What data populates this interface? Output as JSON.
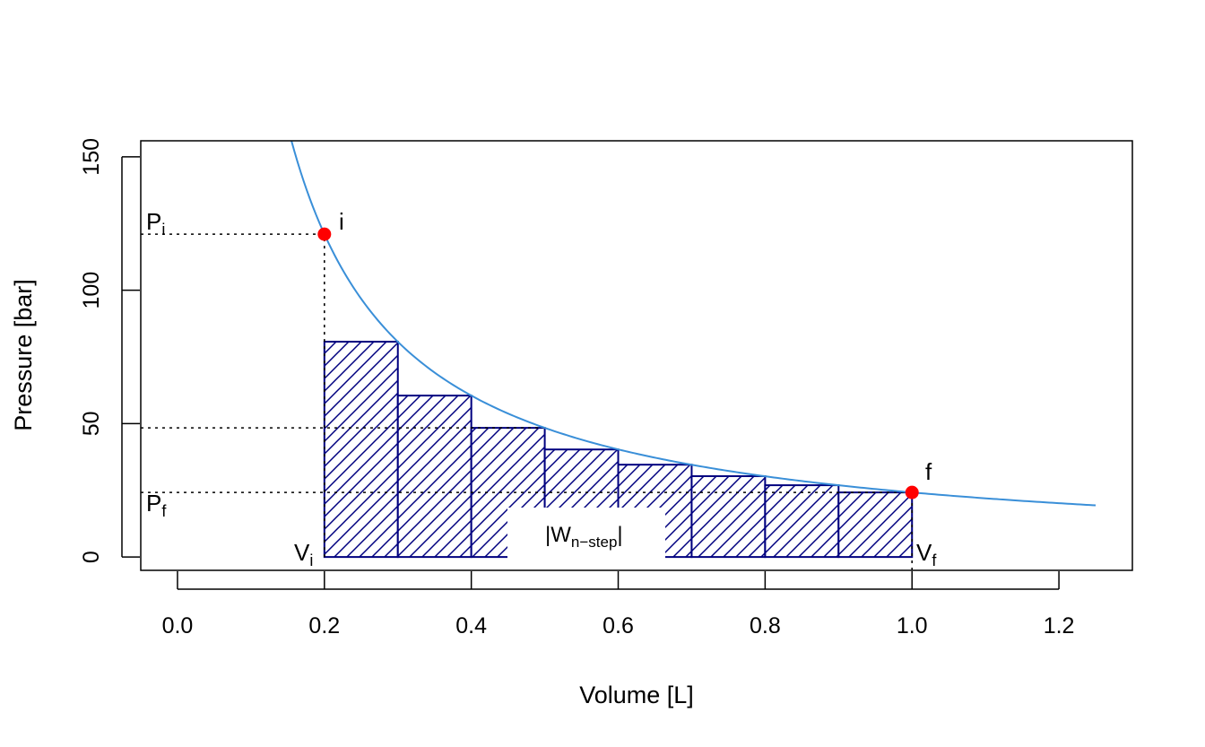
{
  "chart_data": {
    "type": "line",
    "title": "",
    "xlabel": "Volume [L]",
    "ylabel": "Pressure [bar]",
    "xlim": [
      -0.05,
      1.3
    ],
    "ylim": [
      -5,
      156
    ],
    "x_ticks": [
      0.0,
      0.2,
      0.4,
      0.6,
      0.8,
      1.0,
      1.2
    ],
    "x_tick_labels": [
      "0.0",
      "0.2",
      "0.4",
      "0.6",
      "0.8",
      "1.0",
      "1.2"
    ],
    "y_ticks": [
      0,
      50,
      100,
      150
    ],
    "y_tick_labels": [
      "0",
      "50",
      "100",
      "150"
    ],
    "grid": false,
    "legend": "none",
    "series": [
      {
        "kind": "curve",
        "function": "P = 24.2 / V",
        "constant": 24.2,
        "x_range": [
          0.155,
          1.25
        ],
        "color": "#3a8fd8"
      }
    ],
    "steps": {
      "color": "#00007f",
      "fill": "diagonal-hatch",
      "bars": [
        {
          "x0": 0.2,
          "x1": 0.3,
          "pressure": 80.7
        },
        {
          "x0": 0.3,
          "x1": 0.4,
          "pressure": 60.5
        },
        {
          "x0": 0.4,
          "x1": 0.5,
          "pressure": 48.4
        },
        {
          "x0": 0.5,
          "x1": 0.6,
          "pressure": 40.3
        },
        {
          "x0": 0.6,
          "x1": 0.7,
          "pressure": 34.6
        },
        {
          "x0": 0.7,
          "x1": 0.8,
          "pressure": 30.3
        },
        {
          "x0": 0.8,
          "x1": 0.9,
          "pressure": 26.9
        },
        {
          "x0": 0.9,
          "x1": 1.0,
          "pressure": 24.2
        }
      ]
    },
    "points": [
      {
        "label": "i",
        "x": 0.2,
        "y": 121.0,
        "color": "#ff0000"
      },
      {
        "label": "f",
        "x": 1.0,
        "y": 24.2,
        "color": "#ff0000"
      }
    ],
    "reference_lines": [
      {
        "orientation": "horizontal",
        "y": 121.0,
        "x_from": -0.05,
        "x_to": 0.2,
        "label_main": "P",
        "label_sub": "i"
      },
      {
        "orientation": "horizontal",
        "y": 48.4,
        "x_from": -0.05,
        "x_to": 0.5
      },
      {
        "orientation": "horizontal",
        "y": 24.2,
        "x_from": -0.05,
        "x_to": 1.0,
        "label_main": "P",
        "label_sub": "f"
      },
      {
        "orientation": "vertical",
        "x": 0.2,
        "y_from": 0,
        "y_to": 121.0,
        "label_main": "V",
        "label_sub": "i"
      },
      {
        "orientation": "vertical",
        "x": 1.0,
        "y_from": -5,
        "y_to": 24.2,
        "label_main": "V",
        "label_sub": "f"
      }
    ],
    "annotations": [
      {
        "text_main": "|W",
        "text_sub": "n−step",
        "text_end": "|",
        "x": 0.56,
        "y": 9
      }
    ]
  }
}
